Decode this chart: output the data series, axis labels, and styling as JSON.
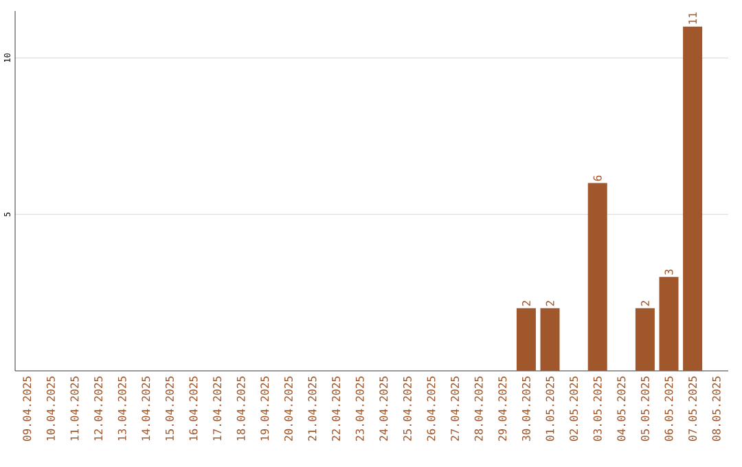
{
  "chart_data": {
    "type": "bar",
    "categories": [
      "09.04.2025",
      "10.04.2025",
      "11.04.2025",
      "12.04.2025",
      "13.04.2025",
      "14.04.2025",
      "15.04.2025",
      "16.04.2025",
      "17.04.2025",
      "18.04.2025",
      "19.04.2025",
      "20.04.2025",
      "21.04.2025",
      "22.04.2025",
      "23.04.2025",
      "24.04.2025",
      "25.04.2025",
      "26.04.2025",
      "27.04.2025",
      "28.04.2025",
      "29.04.2025",
      "30.04.2025",
      "01.05.2025",
      "02.05.2025",
      "03.05.2025",
      "04.05.2025",
      "05.05.2025",
      "06.05.2025",
      "07.05.2025",
      "08.05.2025"
    ],
    "values": [
      0,
      0,
      0,
      0,
      0,
      0,
      0,
      0,
      0,
      0,
      0,
      0,
      0,
      0,
      0,
      0,
      0,
      0,
      0,
      0,
      0,
      2,
      2,
      0,
      6,
      0,
      2,
      3,
      11,
      0
    ],
    "value_labels": [
      null,
      null,
      null,
      null,
      null,
      null,
      null,
      null,
      null,
      null,
      null,
      null,
      null,
      null,
      null,
      null,
      null,
      null,
      null,
      null,
      null,
      "2",
      "2",
      null,
      "6",
      null,
      "2",
      "3",
      "11",
      null
    ],
    "color": "#a0572b",
    "ylim": [
      0,
      11.5
    ],
    "yticks": [
      5,
      10
    ],
    "grid": "y"
  }
}
